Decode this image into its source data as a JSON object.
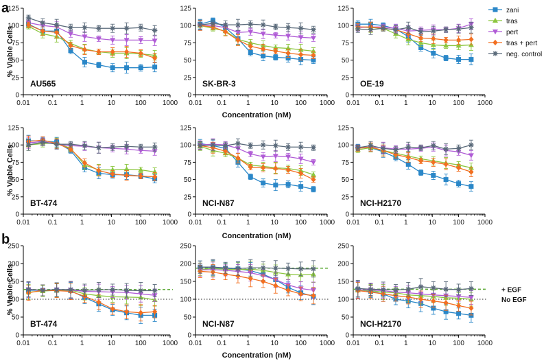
{
  "panel_labels": {
    "a": "a",
    "b": "b"
  },
  "legend": [
    {
      "key": "zani",
      "label": "zani",
      "color": "#2a87c8",
      "marker": "square"
    },
    {
      "key": "tras",
      "label": "tras",
      "color": "#8cc63f",
      "marker": "triangle"
    },
    {
      "key": "pert",
      "label": "pert",
      "color": "#b05cd6",
      "marker": "triangle-down"
    },
    {
      "key": "traspert",
      "label": "tras + pert",
      "color": "#f26f21",
      "marker": "diamond"
    },
    {
      "key": "neg",
      "label": "neg. control",
      "color": "#5a6a7a",
      "marker": "star"
    }
  ],
  "axis_titles": {
    "x": "Concentration (nM)",
    "y": "% Viable Cells"
  },
  "ref_labels": {
    "egf": "+ EGF",
    "noegf": "No EGF"
  },
  "chart_data": [
    {
      "id": "a1",
      "panel": "a",
      "type": "line",
      "title": "AU565",
      "xlog": true,
      "xlim": [
        0.01,
        1000
      ],
      "ylim": [
        0,
        125
      ],
      "yticks": [
        0,
        25,
        50,
        75,
        100,
        125
      ],
      "xticks": [
        0.01,
        0.1,
        1,
        10,
        100,
        1000
      ],
      "xticklabels": [
        "0.01",
        "0.1",
        "1",
        "10",
        "100",
        "1000"
      ],
      "x": [
        0.015,
        0.046,
        0.137,
        0.41,
        1.23,
        3.7,
        11,
        33,
        100,
        300
      ],
      "series": [
        {
          "key": "zani",
          "values": [
            102,
            92,
            92,
            64,
            47,
            43,
            39,
            39,
            39,
            40
          ]
        },
        {
          "key": "tras",
          "values": [
            99,
            88,
            84,
            74,
            66,
            62,
            60,
            60,
            59,
            57
          ]
        },
        {
          "key": "pert",
          "values": [
            104,
            100,
            98,
            88,
            84,
            81,
            79,
            79,
            79,
            78
          ]
        },
        {
          "key": "traspert",
          "values": [
            101,
            92,
            90,
            71,
            65,
            62,
            62,
            62,
            60,
            53
          ]
        },
        {
          "key": "neg",
          "values": [
            111,
            104,
            101,
            97,
            97,
            96,
            96,
            96,
            97,
            93
          ]
        }
      ]
    },
    {
      "id": "a2",
      "panel": "a",
      "type": "line",
      "title": "SK-BR-3",
      "xlog": true,
      "xlim": [
        0.01,
        1000
      ],
      "ylim": [
        0,
        125
      ],
      "yticks": [
        0,
        25,
        50,
        75,
        100,
        125
      ],
      "xticks": [
        0.01,
        0.1,
        1,
        10,
        100,
        1000
      ],
      "xticklabels": [
        "0.01",
        "0.1",
        "1",
        "10",
        "100",
        "1000"
      ],
      "x": [
        0.015,
        0.046,
        0.137,
        0.41,
        1.23,
        3.7,
        11,
        33,
        100,
        300
      ],
      "series": [
        {
          "key": "zani",
          "values": [
            102,
            107,
            97,
            81,
            61,
            56,
            54,
            53,
            51,
            50
          ]
        },
        {
          "key": "tras",
          "values": [
            100,
            96,
            92,
            80,
            75,
            71,
            68,
            67,
            65,
            63
          ]
        },
        {
          "key": "pert",
          "values": [
            100,
            100,
            97,
            90,
            91,
            88,
            86,
            85,
            83,
            82
          ]
        },
        {
          "key": "traspert",
          "values": [
            100,
            98,
            91,
            79,
            70,
            66,
            63,
            60,
            58,
            57
          ]
        },
        {
          "key": "neg",
          "values": [
            101,
            103,
            101,
            101,
            102,
            101,
            98,
            97,
            96,
            94
          ]
        }
      ]
    },
    {
      "id": "a3",
      "panel": "a",
      "type": "line",
      "title": "OE-19",
      "xlog": true,
      "xlim": [
        0.01,
        1000
      ],
      "ylim": [
        0,
        125
      ],
      "yticks": [
        0,
        25,
        50,
        75,
        100,
        125
      ],
      "xticks": [
        0.01,
        0.1,
        1,
        10,
        100,
        1000
      ],
      "xticklabels": [
        "0.01",
        "0.1",
        "1",
        "10",
        "100",
        "1000"
      ],
      "x": [
        0.015,
        0.046,
        0.137,
        0.41,
        1.23,
        3.7,
        11,
        33,
        100,
        300
      ],
      "series": [
        {
          "key": "zani",
          "values": [
            102,
            102,
            100,
            95,
            84,
            68,
            60,
            53,
            51,
            51
          ]
        },
        {
          "key": "tras",
          "values": [
            98,
            97,
            96,
            88,
            80,
            75,
            72,
            71,
            71,
            72
          ]
        },
        {
          "key": "pert",
          "values": [
            97,
            98,
            98,
            96,
            92,
            93,
            94,
            94,
            96,
            102
          ]
        },
        {
          "key": "traspert",
          "values": [
            98,
            98,
            96,
            94,
            88,
            82,
            81,
            79,
            79,
            80
          ]
        },
        {
          "key": "neg",
          "values": [
            95,
            94,
            96,
            94,
            97,
            91,
            92,
            94,
            95,
            97
          ]
        }
      ]
    },
    {
      "id": "a4",
      "panel": "a",
      "type": "line",
      "title": "BT-474",
      "xlog": true,
      "xlim": [
        0.01,
        1000
      ],
      "ylim": [
        0,
        125
      ],
      "yticks": [
        0,
        25,
        50,
        75,
        100,
        125
      ],
      "xticks": [
        0.01,
        0.1,
        1,
        10,
        100,
        1000
      ],
      "xticklabels": [
        "0.01",
        "0.1",
        "1",
        "10",
        "100",
        "1000"
      ],
      "x": [
        0.015,
        0.046,
        0.137,
        0.41,
        1.23,
        3.7,
        11,
        33,
        100,
        300
      ],
      "series": [
        {
          "key": "zani",
          "values": [
            106,
            106,
            104,
            92,
            67,
            59,
            57,
            57,
            55,
            51
          ]
        },
        {
          "key": "tras",
          "values": [
            100,
            102,
            103,
            95,
            71,
            64,
            64,
            65,
            64,
            61
          ]
        },
        {
          "key": "pert",
          "values": [
            103,
            105,
            101,
            99,
            98,
            96,
            95,
            94,
            92,
            91
          ]
        },
        {
          "key": "traspert",
          "values": [
            105,
            107,
            102,
            94,
            74,
            63,
            58,
            56,
            55,
            54
          ]
        },
        {
          "key": "neg",
          "values": [
            100,
            104,
            101,
            101,
            99,
            96,
            97,
            98,
            97,
            97
          ]
        }
      ]
    },
    {
      "id": "a5",
      "panel": "a",
      "type": "line",
      "title": "NCI-N87",
      "xlog": true,
      "xlim": [
        0.01,
        1000
      ],
      "ylim": [
        0,
        125
      ],
      "yticks": [
        0,
        25,
        50,
        75,
        100,
        125
      ],
      "xticks": [
        0.01,
        0.1,
        1,
        10,
        100,
        1000
      ],
      "xticklabels": [
        "0.01",
        "0.1",
        "1",
        "10",
        "100",
        "1000"
      ],
      "x": [
        0.015,
        0.046,
        0.137,
        0.41,
        1.23,
        3.7,
        11,
        33,
        100,
        300
      ],
      "series": [
        {
          "key": "zani",
          "values": [
            102,
            99,
            95,
            75,
            54,
            45,
            42,
            43,
            40,
            36
          ]
        },
        {
          "key": "tras",
          "values": [
            98,
            92,
            88,
            81,
            71,
            69,
            67,
            66,
            63,
            57
          ]
        },
        {
          "key": "pert",
          "values": [
            100,
            101,
            100,
            95,
            87,
            83,
            84,
            83,
            80,
            75
          ]
        },
        {
          "key": "traspert",
          "values": [
            99,
            96,
            91,
            81,
            68,
            67,
            66,
            64,
            59,
            50
          ]
        },
        {
          "key": "neg",
          "values": [
            99,
            100,
            99,
            102,
            99,
            100,
            99,
            97,
            97,
            96
          ]
        }
      ]
    },
    {
      "id": "a6",
      "panel": "a",
      "type": "line",
      "title": "NCI-H2170",
      "xlog": true,
      "xlim": [
        0.01,
        1000
      ],
      "ylim": [
        0,
        125
      ],
      "yticks": [
        0,
        25,
        50,
        75,
        100,
        125
      ],
      "xticks": [
        0.01,
        0.1,
        1,
        10,
        100,
        1000
      ],
      "xticklabels": [
        "0.01",
        "0.1",
        "1",
        "10",
        "100",
        "1000"
      ],
      "x": [
        0.015,
        0.046,
        0.137,
        0.41,
        1.23,
        3.7,
        11,
        33,
        100,
        300
      ],
      "series": [
        {
          "key": "zani",
          "values": [
            97,
            96,
            90,
            82,
            72,
            60,
            56,
            50,
            44,
            40
          ]
        },
        {
          "key": "tras",
          "values": [
            93,
            96,
            92,
            88,
            84,
            80,
            77,
            74,
            71,
            67
          ]
        },
        {
          "key": "pert",
          "values": [
            96,
            97,
            96,
            94,
            94,
            95,
            97,
            92,
            90,
            85
          ]
        },
        {
          "key": "traspert",
          "values": [
            95,
            97,
            92,
            86,
            82,
            77,
            75,
            72,
            67,
            61
          ]
        },
        {
          "key": "neg",
          "values": [
            96,
            99,
            95,
            93,
            97,
            96,
            99,
            94,
            95,
            100
          ]
        }
      ]
    },
    {
      "id": "b1",
      "panel": "b",
      "type": "line",
      "title": "BT-474",
      "xlog": true,
      "xlim": [
        0.01,
        1000
      ],
      "ylim": [
        0,
        250
      ],
      "yticks": [
        0,
        50,
        100,
        150,
        200,
        250
      ],
      "xticks": [
        0.01,
        0.1,
        1,
        10,
        100,
        1000
      ],
      "xticklabels": [
        "0.01",
        "0.1",
        "1",
        "10",
        "100",
        "1000"
      ],
      "x": [
        0.015,
        0.046,
        0.137,
        0.41,
        1.23,
        3.7,
        11,
        33,
        100,
        300
      ],
      "reference_lines": {
        "egf": 127,
        "noegf": 100
      },
      "series": [
        {
          "key": "zani",
          "values": [
            125,
            125,
            125,
            124,
            105,
            87,
            70,
            62,
            55,
            55
          ]
        },
        {
          "key": "tras",
          "values": [
            120,
            123,
            125,
            126,
            115,
            110,
            107,
            106,
            105,
            98
          ]
        },
        {
          "key": "pert",
          "values": [
            127,
            125,
            127,
            126,
            122,
            121,
            120,
            119,
            115,
            111
          ]
        },
        {
          "key": "traspert",
          "values": [
            118,
            125,
            124,
            122,
            108,
            92,
            73,
            65,
            62,
            65
          ]
        },
        {
          "key": "neg",
          "values": [
            128,
            125,
            127,
            127,
            125,
            126,
            127,
            125,
            124,
            124
          ]
        }
      ]
    },
    {
      "id": "b2",
      "panel": "b",
      "type": "line",
      "title": "NCI-N87",
      "xlog": true,
      "xlim": [
        0.01,
        1000
      ],
      "ylim": [
        0,
        250
      ],
      "yticks": [
        0,
        50,
        100,
        150,
        200,
        250
      ],
      "xticks": [
        0.01,
        0.1,
        1,
        10,
        100,
        1000
      ],
      "xticklabels": [
        "0.01",
        "0.1",
        "1",
        "10",
        "100",
        "1000"
      ],
      "x": [
        0.015,
        0.046,
        0.137,
        0.41,
        1.23,
        3.7,
        11,
        33,
        100,
        300
      ],
      "reference_lines": {
        "egf": 187,
        "noegf": 100
      },
      "series": [
        {
          "key": "zani",
          "values": [
            190,
            188,
            186,
            185,
            180,
            170,
            155,
            133,
            118,
            108
          ]
        },
        {
          "key": "tras",
          "values": [
            184,
            186,
            184,
            183,
            184,
            181,
            175,
            170,
            168,
            170
          ]
        },
        {
          "key": "pert",
          "values": [
            182,
            183,
            181,
            178,
            174,
            166,
            155,
            140,
            130,
            125
          ]
        },
        {
          "key": "traspert",
          "values": [
            178,
            176,
            170,
            165,
            158,
            150,
            138,
            125,
            115,
            110
          ]
        },
        {
          "key": "neg",
          "values": [
            190,
            190,
            188,
            186,
            188,
            188,
            187,
            186,
            185,
            185
          ]
        }
      ]
    },
    {
      "id": "b3",
      "panel": "b",
      "type": "line",
      "title": "NCI-H2170",
      "xlog": true,
      "xlim": [
        0.01,
        1000
      ],
      "ylim": [
        0,
        250
      ],
      "yticks": [
        0,
        50,
        100,
        150,
        200,
        250
      ],
      "xticks": [
        0.01,
        0.1,
        1,
        10,
        100,
        1000
      ],
      "xticklabels": [
        "0.01",
        "0.1",
        "1",
        "10",
        "100",
        "1000"
      ],
      "x": [
        0.015,
        0.046,
        0.137,
        0.41,
        1.23,
        3.7,
        11,
        33,
        100,
        300
      ],
      "reference_lines": {
        "egf": 128,
        "noegf": 100
      },
      "series": [
        {
          "key": "zani",
          "values": [
            127,
            122,
            115,
            100,
            95,
            88,
            75,
            65,
            60,
            55
          ]
        },
        {
          "key": "tras",
          "values": [
            125,
            124,
            120,
            118,
            112,
            110,
            108,
            104,
            103,
            100
          ]
        },
        {
          "key": "pert",
          "values": [
            126,
            126,
            124,
            120,
            118,
            115,
            112,
            110,
            108,
            105
          ]
        },
        {
          "key": "traspert",
          "values": [
            124,
            120,
            115,
            110,
            106,
            100,
            95,
            90,
            82,
            75
          ]
        },
        {
          "key": "neg",
          "values": [
            130,
            128,
            127,
            126,
            128,
            135,
            132,
            128,
            127,
            130
          ]
        }
      ]
    }
  ]
}
